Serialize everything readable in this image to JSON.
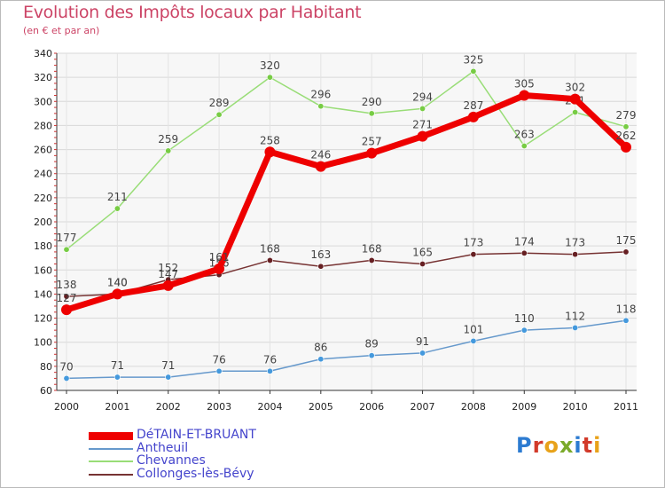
{
  "header": {
    "title": "Evolution des Impôts locaux par Habitant",
    "subtitle": "(en € et par an)"
  },
  "brand": {
    "logo_text": "Proxiti",
    "letter_colors": [
      "#2c7bd1",
      "#d23a2a",
      "#e8a21a",
      "#7aaa2a",
      "#2c7bd1",
      "#d23a2a",
      "#e8a21a"
    ]
  },
  "chart_data": {
    "type": "line",
    "title": "Evolution des Impôts locaux par Habitant",
    "subtitle": "(en € et par an)",
    "xlabel": "",
    "ylabel": "",
    "ylim": [
      60,
      340
    ],
    "yticks": [
      60,
      80,
      100,
      120,
      140,
      160,
      180,
      200,
      220,
      240,
      260,
      280,
      300,
      320,
      340
    ],
    "grid": true,
    "legend_position": "bottom-left",
    "x": [
      "2000",
      "2001",
      "2002",
      "2003",
      "2004",
      "2005",
      "2006",
      "2007",
      "2008",
      "2009",
      "2010",
      "2011"
    ],
    "series": [
      {
        "name": "Chevannes",
        "color": "#99dd77",
        "marker": "#77cc44",
        "values": [
          177,
          211,
          259,
          289,
          320,
          296,
          290,
          294,
          325,
          263,
          291,
          279
        ]
      },
      {
        "name": "Collonges-lès-Bévy",
        "color": "#773333",
        "marker": "#661f22",
        "values": [
          138,
          140,
          152,
          156,
          168,
          163,
          168,
          165,
          173,
          174,
          173,
          175
        ]
      },
      {
        "name": "Antheuil",
        "color": "#6699cc",
        "marker": "#4499dd",
        "values": [
          70,
          71,
          71,
          76,
          76,
          86,
          89,
          91,
          101,
          110,
          112,
          118
        ]
      },
      {
        "name": "DéTAIN-ET-BRUANT",
        "color": "#ee0000",
        "marker": "#ee0000",
        "values": [
          127,
          140,
          147,
          161,
          258,
          246,
          257,
          271,
          287,
          305,
          302,
          262
        ]
      }
    ]
  },
  "legend": [
    {
      "name": "DéTAIN-ET-BRUANT",
      "color": "#ee0000"
    },
    {
      "name": "Antheuil",
      "color": "#6699cc"
    },
    {
      "name": "Chevannes",
      "color": "#99dd77"
    },
    {
      "name": "Collonges-lès-Bévy",
      "color": "#773333"
    }
  ]
}
